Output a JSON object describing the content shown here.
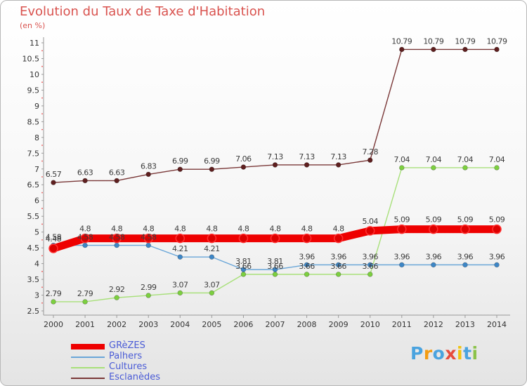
{
  "title": "Evolution du Taux de Taxe d'Habitation",
  "unit_label": "(en %)",
  "logo": {
    "text": "Proxiti",
    "letter_colors": [
      "#4aa3df",
      "#f39c12",
      "#4aa3df",
      "#e74c3c",
      "#f1c40f",
      "#4aa3df",
      "#8bc34a"
    ]
  },
  "chart_data": {
    "type": "line",
    "title": "Evolution du Taux de Taxe d'Habitation",
    "ylabel": "(en %)",
    "x": [
      "2000",
      "2001",
      "2002",
      "2003",
      "2004",
      "2005",
      "2006",
      "2007",
      "2008",
      "2009",
      "2010",
      "2011",
      "2012",
      "2013",
      "2014"
    ],
    "ylim": [
      2.5,
      11
    ],
    "yticks": [
      "2.5",
      "3",
      "3.5",
      "4",
      "4.5",
      "5",
      "5.5",
      "6",
      "6.5",
      "7",
      "7.5",
      "8",
      "8.5",
      "9",
      "9.5",
      "10",
      "10.5",
      "11"
    ],
    "grid": false,
    "legend_position": "bottom-left",
    "series": [
      {
        "name": "GRèZES",
        "color": "#ee0000",
        "marker": "#dd0000",
        "bold": true,
        "values": [
          4.48,
          4.8,
          4.8,
          4.8,
          4.8,
          4.8,
          4.8,
          4.8,
          4.8,
          4.8,
          5.04,
          5.09,
          5.09,
          5.09,
          5.09
        ],
        "labels": [
          "4.48",
          "4.8",
          "4.8",
          "4.8",
          "4.8",
          "4.8",
          "4.8",
          "4.8",
          "4.8",
          "4.8",
          "5.04",
          "5.09",
          "5.09",
          "5.09",
          "5.09"
        ]
      },
      {
        "name": "Palhers",
        "color": "#6aa6d8",
        "marker": "#3d86c6",
        "bold": false,
        "values": [
          4.58,
          4.58,
          4.58,
          4.58,
          4.21,
          4.21,
          3.81,
          3.81,
          3.96,
          3.96,
          3.96,
          3.96,
          3.96,
          3.96,
          3.96
        ],
        "labels": [
          "4.58",
          "4.58",
          "4.58",
          "4.58",
          "4.21",
          "4.21",
          "3.81",
          "3.81",
          "3.96",
          "3.96",
          "3.96",
          "3.96",
          "3.96",
          "3.96",
          "3.96"
        ]
      },
      {
        "name": "Cultures",
        "color": "#a8e07a",
        "marker": "#7ccf3f",
        "bold": false,
        "values": [
          2.79,
          2.79,
          2.92,
          2.99,
          3.07,
          3.07,
          3.66,
          3.66,
          3.66,
          3.66,
          3.66,
          7.04,
          7.04,
          7.04,
          7.04
        ],
        "labels": [
          "2.79",
          "2.79",
          "2.92",
          "2.99",
          "3.07",
          "3.07",
          "3.66",
          "3.66",
          "3.66",
          "3.66",
          "3.66",
          "7.04",
          "7.04",
          "7.04",
          "7.04"
        ]
      },
      {
        "name": "Esclanèdes",
        "color": "#7a3838",
        "marker": "#5e1f1f",
        "bold": false,
        "values": [
          6.57,
          6.63,
          6.63,
          6.83,
          6.99,
          6.99,
          7.06,
          7.13,
          7.13,
          7.13,
          7.28,
          10.79,
          10.79,
          10.79,
          10.79
        ],
        "labels": [
          "6.57",
          "6.63",
          "6.63",
          "6.83",
          "6.99",
          "6.99",
          "7.06",
          "7.13",
          "7.13",
          "7.13",
          "7.28",
          "10.79",
          "10.79",
          "10.79",
          "10.79"
        ]
      }
    ]
  }
}
